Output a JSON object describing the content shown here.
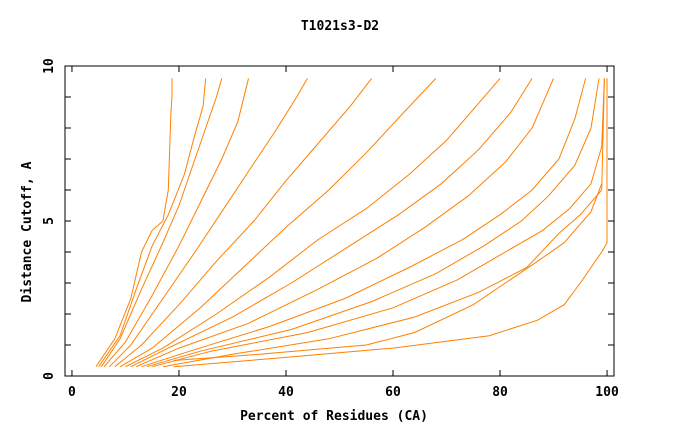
{
  "chart_data": {
    "type": "line",
    "title": "T1021s3-D2",
    "xlabel": "Percent of Residues (CA)",
    "ylabel": "Distance Cutoff, A",
    "xlim": [
      -1.3,
      101.3
    ],
    "ylim": [
      0,
      10
    ],
    "xticks": [
      "0",
      "20",
      "40",
      "60",
      "80",
      "100"
    ],
    "yticks": [
      "0",
      "5",
      "10"
    ],
    "grid": false,
    "line_color": "#ff8000",
    "series": [
      {
        "points": [
          [
            4.5,
            0.3
          ],
          [
            8,
            1.2
          ],
          [
            11,
            2.5
          ],
          [
            13,
            4
          ],
          [
            15,
            4.7
          ],
          [
            17,
            5
          ],
          [
            18,
            6
          ],
          [
            18.5,
            8.5
          ],
          [
            18.7,
            9
          ],
          [
            18.7,
            9.6
          ]
        ]
      },
      {
        "points": [
          [
            5,
            0.3
          ],
          [
            9,
            1.3
          ],
          [
            12,
            2.8
          ],
          [
            15,
            4.2
          ],
          [
            18,
            5.2
          ],
          [
            21,
            6.5
          ],
          [
            23,
            7.8
          ],
          [
            24.5,
            8.7
          ],
          [
            25,
            9.6
          ]
        ]
      },
      {
        "points": [
          [
            5.5,
            0.3
          ],
          [
            9,
            1.2
          ],
          [
            13,
            2.8
          ],
          [
            17,
            4.3
          ],
          [
            20,
            5.5
          ],
          [
            23,
            7
          ],
          [
            25,
            8
          ],
          [
            27,
            9
          ],
          [
            28,
            9.6
          ]
        ]
      },
      {
        "points": [
          [
            6,
            0.3
          ],
          [
            10,
            1.1
          ],
          [
            15,
            2.6
          ],
          [
            20,
            4.2
          ],
          [
            24,
            5.6
          ],
          [
            28,
            7
          ],
          [
            31,
            8.2
          ],
          [
            33,
            9.6
          ]
        ]
      },
      {
        "points": [
          [
            7,
            0.3
          ],
          [
            11,
            1
          ],
          [
            17,
            2.5
          ],
          [
            23,
            4
          ],
          [
            28,
            5.3
          ],
          [
            33,
            6.6
          ],
          [
            38,
            7.9
          ],
          [
            42,
            9
          ],
          [
            44,
            9.6
          ]
        ]
      },
      {
        "points": [
          [
            8,
            0.3
          ],
          [
            13,
            1
          ],
          [
            20,
            2.3
          ],
          [
            27,
            3.7
          ],
          [
            34,
            5
          ],
          [
            40,
            6.3
          ],
          [
            46,
            7.5
          ],
          [
            52,
            8.7
          ],
          [
            56,
            9.6
          ]
        ]
      },
      {
        "points": [
          [
            9,
            0.3
          ],
          [
            15,
            0.9
          ],
          [
            24,
            2.2
          ],
          [
            32,
            3.5
          ],
          [
            40,
            4.8
          ],
          [
            48,
            6
          ],
          [
            55,
            7.2
          ],
          [
            62,
            8.5
          ],
          [
            68,
            9.6
          ]
        ]
      },
      {
        "points": [
          [
            10,
            0.3
          ],
          [
            17,
            0.9
          ],
          [
            27,
            2
          ],
          [
            37,
            3.2
          ],
          [
            46,
            4.4
          ],
          [
            55,
            5.4
          ],
          [
            63,
            6.5
          ],
          [
            70,
            7.6
          ],
          [
            75,
            8.6
          ],
          [
            80,
            9.6
          ]
        ]
      },
      {
        "points": [
          [
            11,
            0.3
          ],
          [
            18,
            0.9
          ],
          [
            30,
            1.9
          ],
          [
            41,
            3
          ],
          [
            51,
            4.1
          ],
          [
            61,
            5.2
          ],
          [
            69,
            6.2
          ],
          [
            76,
            7.3
          ],
          [
            82,
            8.5
          ],
          [
            86,
            9.6
          ]
        ]
      },
      {
        "points": [
          [
            12,
            0.3
          ],
          [
            20,
            0.9
          ],
          [
            33,
            1.7
          ],
          [
            46,
            2.8
          ],
          [
            57,
            3.8
          ],
          [
            66,
            4.8
          ],
          [
            74,
            5.8
          ],
          [
            81,
            6.9
          ],
          [
            86,
            8
          ],
          [
            90,
            9.6
          ]
        ]
      },
      {
        "points": [
          [
            13,
            0.3
          ],
          [
            22,
            0.8
          ],
          [
            37,
            1.6
          ],
          [
            51,
            2.5
          ],
          [
            63,
            3.5
          ],
          [
            73,
            4.4
          ],
          [
            80,
            5.2
          ],
          [
            86,
            6
          ],
          [
            91,
            7
          ],
          [
            94,
            8.3
          ],
          [
            96,
            9.6
          ]
        ]
      },
      {
        "points": [
          [
            14,
            0.3
          ],
          [
            24,
            0.8
          ],
          [
            41,
            1.5
          ],
          [
            56,
            2.4
          ],
          [
            68,
            3.3
          ],
          [
            77,
            4.2
          ],
          [
            84,
            5
          ],
          [
            89,
            5.8
          ],
          [
            94,
            6.8
          ],
          [
            97,
            8
          ],
          [
            98.5,
            9.6
          ]
        ]
      },
      {
        "points": [
          [
            15,
            0.3
          ],
          [
            26,
            0.8
          ],
          [
            44,
            1.4
          ],
          [
            60,
            2.2
          ],
          [
            72,
            3.1
          ],
          [
            81,
            4
          ],
          [
            88,
            4.7
          ],
          [
            93,
            5.4
          ],
          [
            97,
            6.2
          ],
          [
            99,
            7.4
          ],
          [
            99.5,
            9.6
          ]
        ]
      },
      {
        "points": [
          [
            17,
            0.3
          ],
          [
            30,
            0.7
          ],
          [
            48,
            1.2
          ],
          [
            64,
            1.9
          ],
          [
            76,
            2.7
          ],
          [
            85,
            3.5
          ],
          [
            91,
            4.6
          ],
          [
            95,
            5.2
          ],
          [
            99,
            6
          ],
          [
            99.5,
            9.6
          ]
        ]
      },
      {
        "points": [
          [
            19,
            0.5
          ],
          [
            35,
            0.7
          ],
          [
            55,
            1
          ],
          [
            64,
            1.4
          ],
          [
            75,
            2.3
          ],
          [
            87,
            3.7
          ],
          [
            92,
            4.3
          ],
          [
            97,
            5.3
          ],
          [
            99,
            6.2
          ]
        ]
      },
      {
        "points": [
          [
            19,
            0.3
          ],
          [
            40,
            0.6
          ],
          [
            60,
            0.9
          ],
          [
            78,
            1.3
          ],
          [
            87,
            1.8
          ],
          [
            92,
            2.3
          ],
          [
            95,
            3
          ],
          [
            97,
            3.5
          ],
          [
            99,
            4
          ],
          [
            100,
            4.3
          ],
          [
            100,
            9.6
          ]
        ]
      }
    ]
  }
}
